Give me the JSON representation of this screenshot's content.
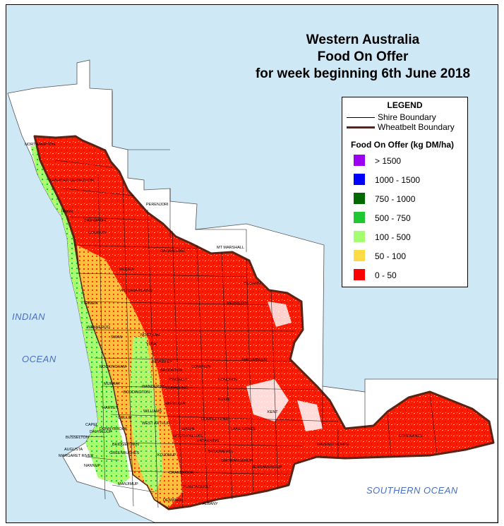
{
  "title": {
    "line1": "Western Australia",
    "line2": "Food On Offer",
    "line3": "for week beginning 6th June 2018"
  },
  "legend": {
    "title": "LEGEND",
    "shire_boundary": "Shire Boundary",
    "wheatbelt_boundary": "Wheatbelt Boundary",
    "heading": "Food On Offer (kg DM/ha)",
    "classes": [
      {
        "label": "> 1500",
        "color": "#9b00f0"
      },
      {
        "label": "1000 - 1500",
        "color": "#0000ff"
      },
      {
        "label": "750 - 1000",
        "color": "#006a00"
      },
      {
        "label": "500 - 750",
        "color": "#1ec832"
      },
      {
        "label": "100 - 500",
        "color": "#a4ff70"
      },
      {
        "label": "50 - 100",
        "color": "#ffdc46"
      },
      {
        "label": "0 - 50",
        "color": "#ff0000"
      }
    ]
  },
  "oceans": {
    "indian_1": "INDIAN",
    "indian_2": "OCEAN",
    "southern": "SOUTHERN   OCEAN"
  },
  "places": {
    "perenjori": "PERENJORI",
    "mt_marshall": "MT MARSHALL",
    "wanneroo": "WANNEROO",
    "swan": "SWAN",
    "murray": "MURRAY",
    "harvey": "HARVEY",
    "collie": "COLLIE",
    "busselton": "BUSSELTON",
    "augusta": "AUGUSTA",
    "margaret_river": "MARGARET RIVER",
    "nannup": "NANNUP",
    "manjimup": "MANJIMUP",
    "denmark": "DENMARK",
    "albany": "ALBANY",
    "plantagenet": "PLANTAGENET",
    "cranbrook": "CRANBROOK",
    "ravensthorpe": "RAVENSTHORPE",
    "esperance": "ESPERANCE",
    "northam": "NORTHAM",
    "york": "YORK",
    "beverley": "BEVERLEY",
    "brookton": "BROOKTON",
    "williams": "WILLIAMS",
    "katanning": "KATANNING",
    "kojonup": "KOJONUP",
    "narrogin": "NARROGIN",
    "gingin": "GINGIN",
    "victoria_plains": "VICTORIA PLAINS",
    "moora": "MOORA",
    "dalwallinu": "DALWALLINU",
    "irwin": "IRWIN",
    "northampton": "NORTHAMPTON",
    "greater_geraldton": "GREATER GERALDTON",
    "coorow": "COOROW",
    "carnamah": "CARNAMAH",
    "rockingham": "ROCKINGHAM",
    "boddington": "BODDINGTON",
    "donnybrook": "DONNYBROOK",
    "bridgetown": "BRIDGETOWN",
    "greenbushes": "GREENBUSHES",
    "capel": "CAPEL",
    "dalyellup": "DALYELLUP",
    "merredin": "MERREDIN",
    "yilgarn": "YILGARN",
    "lake_grace": "LAKE GRACE",
    "kent": "KENT",
    "jerramungup": "JERRAMUNGUP",
    "wagin": "WAGIN",
    "broomehill": "BROOMEHILL",
    "gnowangerup": "GNOWANGERUP",
    "kulin": "KULIN",
    "corrigin": "CORRIGIN",
    "kondinin": "KONDININ",
    "narembeen": "NAREMBEEN",
    "pingelly": "PINGELLY",
    "cuballing": "CUBALLING",
    "wandering": "WANDERING",
    "west_arthur": "WEST ARTHUR",
    "woodanilling": "WOODANILLING",
    "dumbleyung": "DUMBLEYUNG"
  }
}
